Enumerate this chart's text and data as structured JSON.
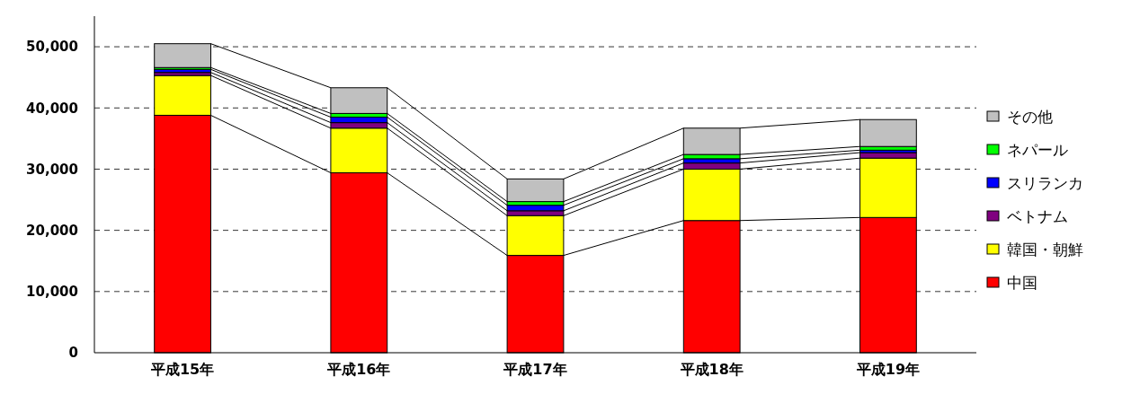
{
  "chart_data": {
    "type": "bar",
    "stacked": true,
    "categories": [
      "平成15年",
      "平成16年",
      "平成17年",
      "平成18年",
      "平成19年"
    ],
    "series": [
      {
        "name": "中国",
        "color": "#ff0000",
        "values": [
          38800,
          29400,
          15900,
          21600,
          22100
        ]
      },
      {
        "name": "韓国・朝鮮",
        "color": "#ffff00",
        "values": [
          6500,
          7300,
          6500,
          8400,
          9700
        ]
      },
      {
        "name": "ベトナム",
        "color": "#800080",
        "values": [
          500,
          900,
          800,
          1000,
          900
        ]
      },
      {
        "name": "スリランカ",
        "color": "#0000ff",
        "values": [
          500,
          900,
          900,
          700,
          400
        ]
      },
      {
        "name": "ネパール",
        "color": "#00ff00",
        "values": [
          300,
          600,
          600,
          700,
          600
        ]
      },
      {
        "name": "その他",
        "color": "#c0c0c0",
        "values": [
          3900,
          4200,
          3700,
          4300,
          4400
        ]
      }
    ],
    "ylim": [
      0,
      55000
    ],
    "yticks": [
      {
        "value": 0,
        "label": "0"
      },
      {
        "value": 10000,
        "label": "10,000"
      },
      {
        "value": 20000,
        "label": "20,000"
      },
      {
        "value": 30000,
        "label": "30,000"
      },
      {
        "value": 40000,
        "label": "40,000"
      },
      {
        "value": 50000,
        "label": "50,000"
      }
    ],
    "grid": "y",
    "legend": "right"
  }
}
